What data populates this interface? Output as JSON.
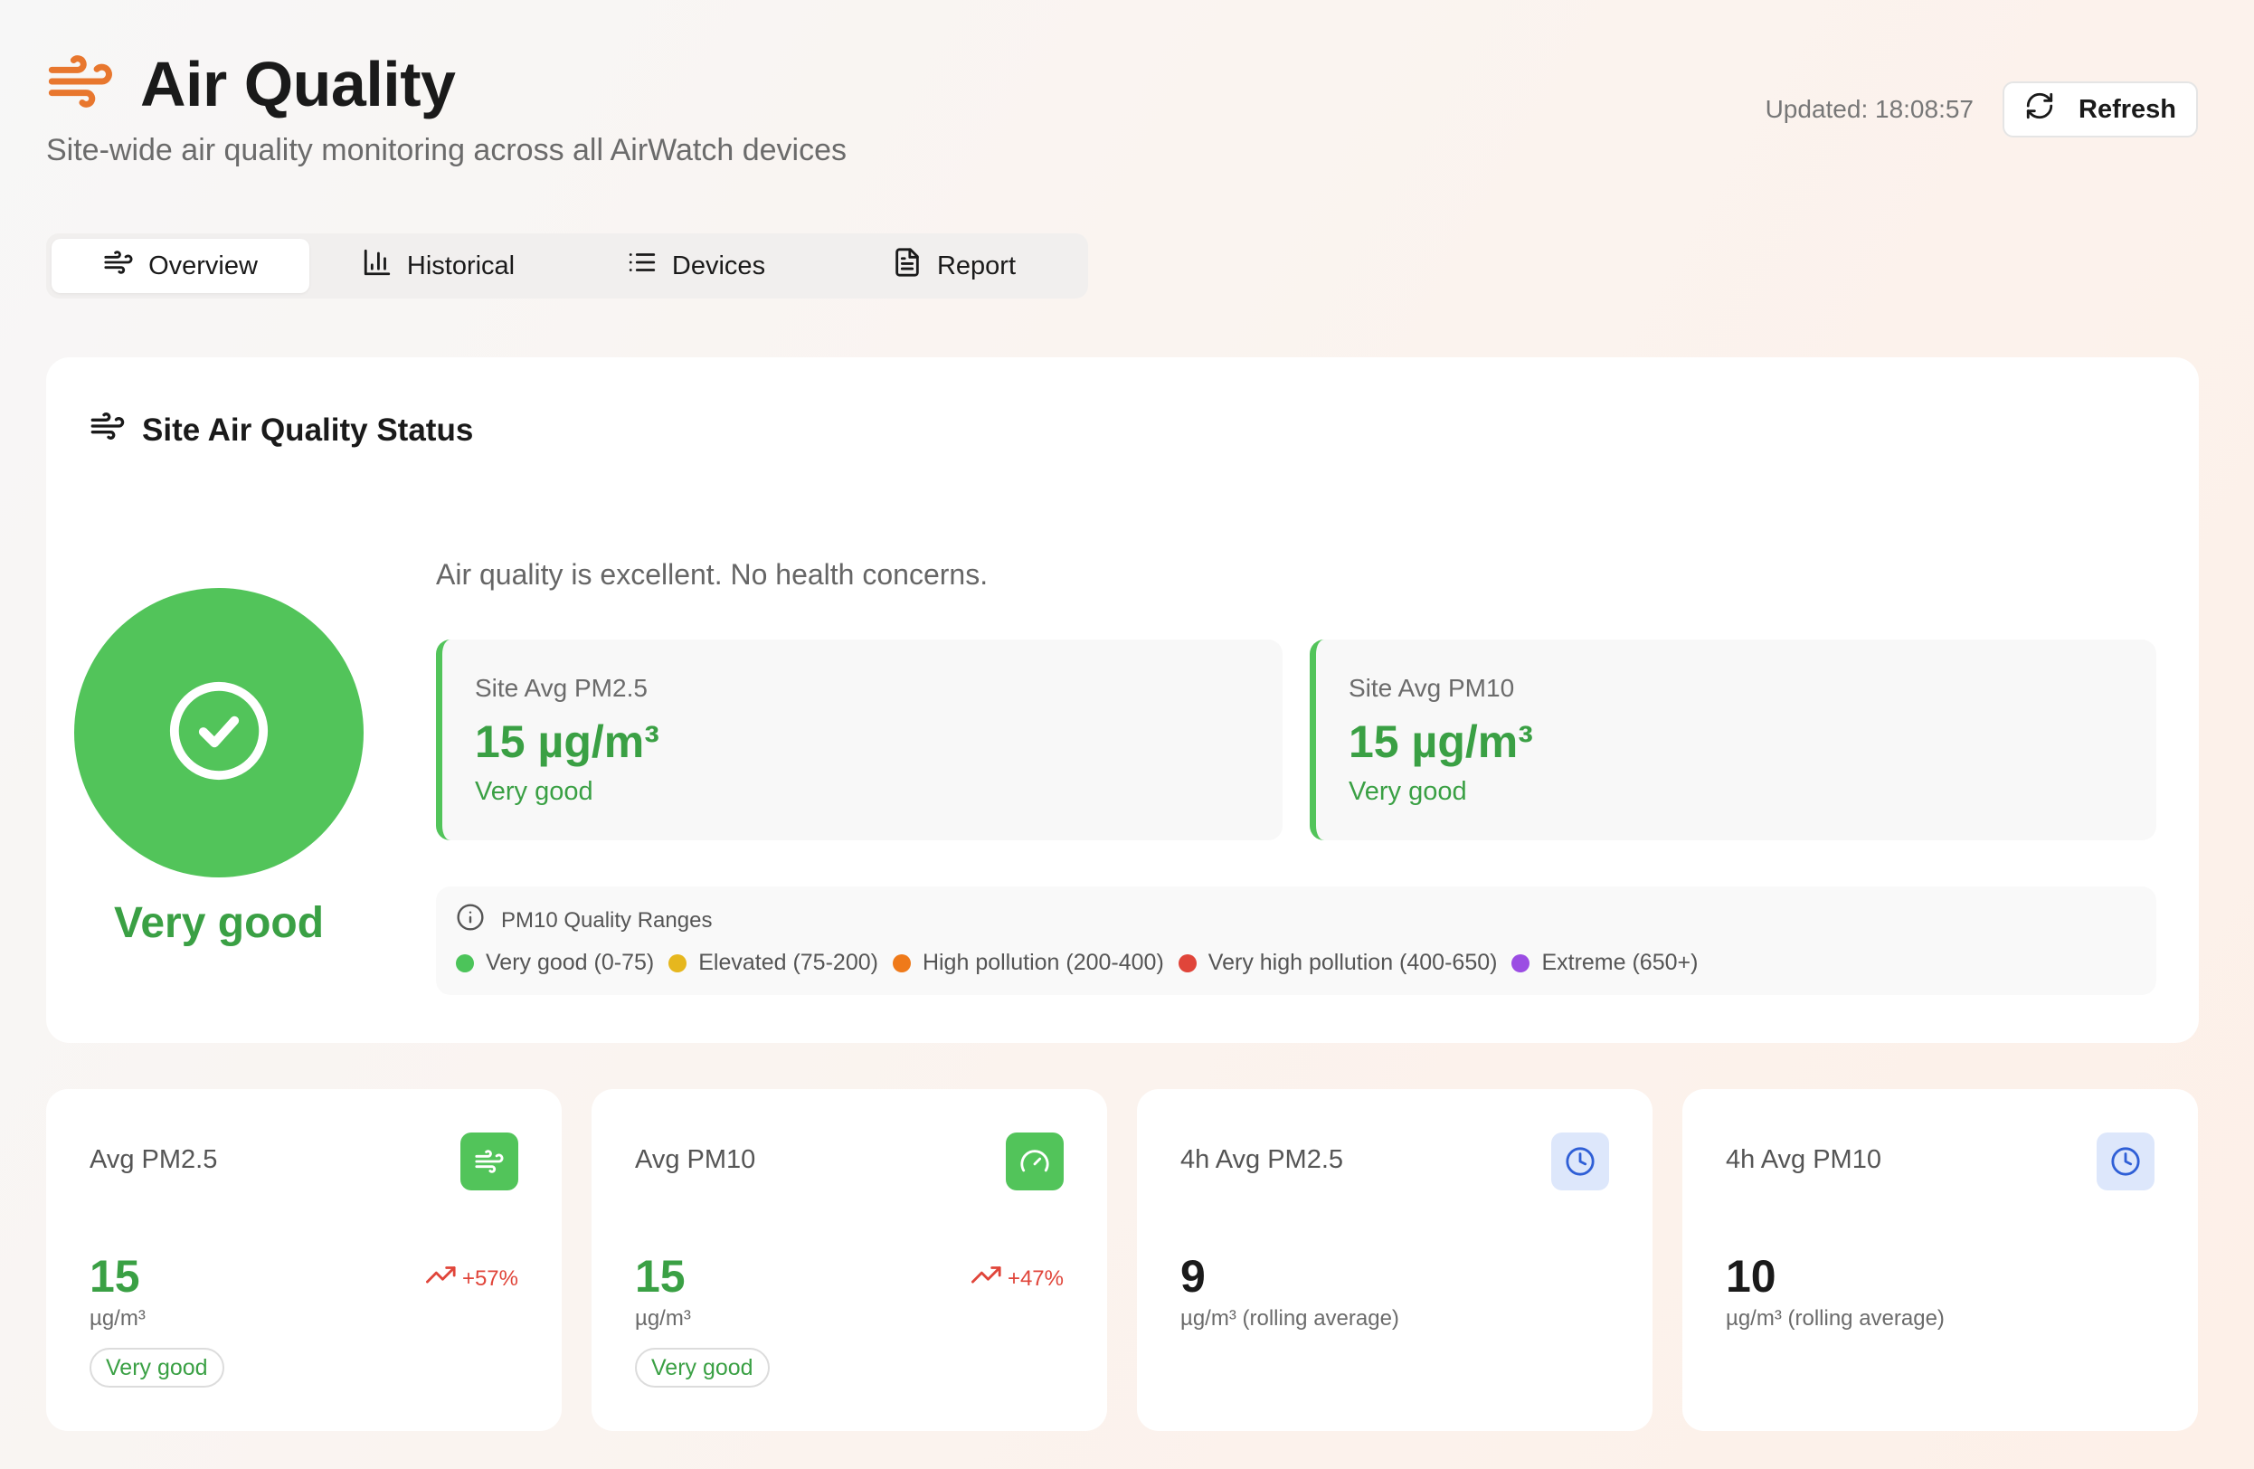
{
  "header": {
    "title": "Air Quality",
    "subtitle": "Site-wide air quality monitoring across all AirWatch devices",
    "icon": "wind-icon",
    "accent_color": "#e8772e"
  },
  "toolbar": {
    "updated_label": "Updated: 18:08:57",
    "refresh_label": "Refresh"
  },
  "tabs": [
    {
      "label": "Overview",
      "icon": "wind-icon",
      "active": true
    },
    {
      "label": "Historical",
      "icon": "bar-chart-icon",
      "active": false
    },
    {
      "label": "Devices",
      "icon": "list-icon",
      "active": false
    },
    {
      "label": "Report",
      "icon": "file-text-icon",
      "active": false
    }
  ],
  "status": {
    "title": "Site Air Quality Status",
    "level": "Very good",
    "message": "Air quality is excellent. No health concerns.",
    "color": "#52c45a",
    "metrics": [
      {
        "label": "Site Avg PM2.5",
        "value": "15 µg/m³",
        "status": "Very good"
      },
      {
        "label": "Site Avg PM10",
        "value": "15 µg/m³",
        "status": "Very good"
      }
    ],
    "ranges": {
      "title": "PM10 Quality Ranges",
      "items": [
        {
          "label": "Very good (0-75)",
          "color": "#4cc45a"
        },
        {
          "label": "Elevated (75-200)",
          "color": "#e6b71e"
        },
        {
          "label": "High pollution (200-400)",
          "color": "#ef7a1a"
        },
        {
          "label": "Very high pollution (400-650)",
          "color": "#e0453a"
        },
        {
          "label": "Extreme (650+)",
          "color": "#9b4de3"
        }
      ]
    }
  },
  "stats": [
    {
      "label": "Avg PM2.5",
      "value": "15",
      "unit": "µg/m³",
      "trend": "+57%",
      "badge": "Very good",
      "icon": "wind-icon"
    },
    {
      "label": "Avg PM10",
      "value": "15",
      "unit": "µg/m³",
      "trend": "+47%",
      "badge": "Very good",
      "icon": "gauge-icon"
    },
    {
      "label": "4h Avg PM2.5",
      "value": "9",
      "unit": "µg/m³ (rolling average)",
      "icon": "clock-icon"
    },
    {
      "label": "4h Avg PM10",
      "value": "10",
      "unit": "µg/m³ (rolling average)",
      "icon": "clock-icon"
    }
  ]
}
